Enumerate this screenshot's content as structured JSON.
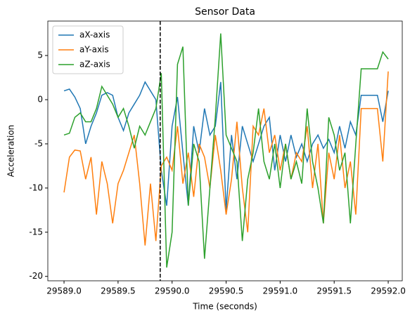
{
  "chart_data": {
    "type": "line",
    "title": "Sensor Data",
    "xlabel": "Time (seconds)",
    "ylabel": "Acceleration",
    "x": [
      29589.0,
      29589.05,
      29589.1,
      29589.15,
      29589.2,
      29589.25,
      29589.3,
      29589.35,
      29589.4,
      29589.45,
      29589.5,
      29589.55,
      29589.6,
      29589.65,
      29589.7,
      29589.75,
      29589.8,
      29589.85,
      29589.9,
      29589.95,
      29590.0,
      29590.05,
      29590.1,
      29590.15,
      29590.2,
      29590.25,
      29590.3,
      29590.35,
      29590.4,
      29590.45,
      29590.5,
      29590.55,
      29590.6,
      29590.65,
      29590.7,
      29590.75,
      29590.8,
      29590.85,
      29590.9,
      29590.95,
      29591.0,
      29591.05,
      29591.1,
      29591.15,
      29591.2,
      29591.25,
      29591.3,
      29591.35,
      29591.4,
      29591.45,
      29591.5,
      29591.55,
      29591.6,
      29591.65,
      29591.7,
      29591.75,
      29591.8,
      29591.85,
      29591.9,
      29591.95,
      29592.0
    ],
    "series": [
      {
        "name": "aX-axis",
        "color": "#1f77b4",
        "values": [
          1.0,
          1.2,
          0.3,
          -1,
          -5,
          -3,
          -1.5,
          0.5,
          0.8,
          0.5,
          -2,
          -3.5,
          -1.5,
          -0.5,
          0.5,
          2.0,
          1.0,
          0.0,
          -8,
          -12,
          -3,
          0.3,
          -6,
          -12,
          -3,
          -6,
          -1,
          -4,
          -3,
          2,
          -12.5,
          -4,
          -9,
          -3,
          -5,
          -7,
          -5,
          -3,
          -2,
          -8,
          -4,
          -7,
          -4,
          -6.5,
          -5,
          -7,
          -5,
          -4,
          -5.5,
          -4.5,
          -6,
          -3,
          -5.5,
          -2.5,
          -4,
          0.5,
          0.5,
          0.5,
          0.5,
          -2.5,
          1.0
        ]
      },
      {
        "name": "aY-axis",
        "color": "#ff7f0e",
        "values": [
          -10.5,
          -6.5,
          -5.7,
          -5.8,
          -9,
          -6.5,
          -13,
          -7,
          -9.5,
          -14,
          -9.5,
          -8,
          -6,
          -4,
          -9.5,
          -16.5,
          -9.5,
          -16,
          -7.5,
          -6.5,
          -8,
          -3,
          -9.5,
          -6,
          -11,
          -5,
          -6.5,
          -10,
          -4,
          -8,
          -13,
          -9,
          -2.5,
          -10,
          -15,
          -3,
          -4,
          -1,
          -6,
          -4,
          -8,
          -5,
          -9,
          -6,
          -7,
          -3,
          -10,
          -5,
          -14,
          -6,
          -9,
          -4,
          -10,
          -7,
          -13,
          -1,
          -1,
          -1,
          -1,
          -7,
          3.2
        ]
      },
      {
        "name": "aZ-axis",
        "color": "#2ca02c",
        "values": [
          -4,
          -3.8,
          -2,
          -1.5,
          -2.5,
          -2.5,
          -1,
          1.5,
          0.5,
          -0.5,
          -2,
          -1,
          -3,
          -5.5,
          -3,
          -4,
          -2.5,
          -1,
          3,
          -19,
          -15,
          4,
          6,
          -12,
          -5,
          -7,
          -18,
          -10,
          -2,
          7.5,
          -4,
          -5.5,
          -7,
          -16,
          -9,
          -6,
          -1,
          -7,
          -9,
          -5,
          -10,
          -5,
          -9,
          -7,
          -9.5,
          -1,
          -7,
          -10,
          -14,
          -2,
          -4,
          -8,
          -6,
          -14,
          -5,
          3.5,
          3.5,
          3.5,
          3.5,
          5.4,
          4.6
        ]
      }
    ],
    "vline": 29589.89,
    "xlim": [
      29588.85,
      29592.13
    ],
    "ylim": [
      -20.5,
      8.9
    ],
    "xticks": [
      {
        "value": 29589,
        "label": "29589.0"
      },
      {
        "value": 29589.5,
        "label": "29589.5"
      },
      {
        "value": 29590,
        "label": "29590.0"
      },
      {
        "value": 29590.5,
        "label": "29590.5"
      },
      {
        "value": 29591,
        "label": "29591.0"
      },
      {
        "value": 29591.5,
        "label": "29591.5"
      },
      {
        "value": 29592,
        "label": "29592.0"
      }
    ],
    "yticks": [
      -20,
      -15,
      -10,
      -5,
      0,
      5
    ],
    "legend": "upper left"
  }
}
